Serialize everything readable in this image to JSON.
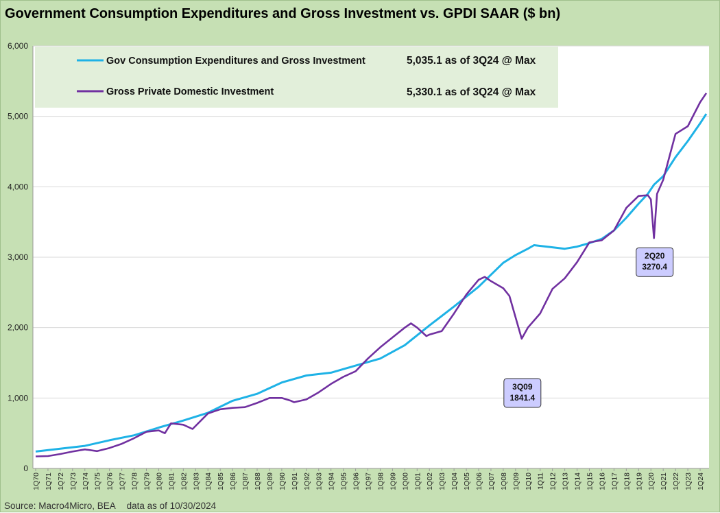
{
  "title": "Government Consumption Expenditures and Gross Investment vs. GPDI SAAR ($ bn)",
  "source": "Source: Macro4Micro, BEA",
  "data_as_of": "data as of 10/30/2024",
  "colors": {
    "gov": "#1eb2e6",
    "gpdi": "#7030a0",
    "frame": "#c6e0b4",
    "legend_box": "#e2efda",
    "callout_fill": "#ccccff"
  },
  "chart_data": {
    "type": "line",
    "title": "Government Consumption Expenditures and Gross Investment vs. GPDI SAAR ($ bn)",
    "ylim": [
      0,
      6000
    ],
    "yticks": [
      0,
      1000,
      2000,
      3000,
      4000,
      5000,
      6000
    ],
    "ytick_labels": [
      "0",
      "1,000",
      "2,000",
      "3,000",
      "4,000",
      "5,000",
      "6,000"
    ],
    "grid": "horizontal",
    "xlim": [
      "1Q70",
      "3Q24"
    ],
    "xtick_labels": [
      "1Q70",
      "1Q71",
      "1Q72",
      "1Q73",
      "1Q74",
      "1Q75",
      "1Q76",
      "1Q77",
      "1Q78",
      "1Q79",
      "1Q80",
      "1Q81",
      "1Q82",
      "1Q83",
      "1Q84",
      "1Q85",
      "1Q86",
      "1Q87",
      "1Q88",
      "1Q89",
      "1Q90",
      "1Q91",
      "1Q92",
      "1Q93",
      "1Q94",
      "1Q95",
      "1Q96",
      "1Q97",
      "1Q98",
      "1Q99",
      "1Q00",
      "1Q01",
      "1Q02",
      "1Q03",
      "1Q04",
      "1Q05",
      "1Q06",
      "1Q07",
      "1Q08",
      "1Q09",
      "1Q10",
      "1Q11",
      "1Q12",
      "1Q13",
      "1Q14",
      "1Q15",
      "1Q16",
      "1Q17",
      "1Q18",
      "1Q19",
      "1Q20",
      "1Q21",
      "1Q22",
      "1Q23",
      "1Q24"
    ],
    "legend_position": "top-left",
    "series": [
      {
        "name": "Gov Consumption Expenditures and Gross Investment",
        "note": "5,035.1 as of 3Q24 @ Max",
        "color": "#1eb2e6",
        "points": [
          [
            "1Q70",
            240
          ],
          [
            "1Q72",
            280
          ],
          [
            "1Q74",
            320
          ],
          [
            "1Q76",
            400
          ],
          [
            "1Q78",
            470
          ],
          [
            "1Q80",
            580
          ],
          [
            "1Q82",
            680
          ],
          [
            "1Q84",
            790
          ],
          [
            "1Q86",
            960
          ],
          [
            "1Q88",
            1060
          ],
          [
            "1Q90",
            1220
          ],
          [
            "1Q92",
            1320
          ],
          [
            "1Q94",
            1360
          ],
          [
            "1Q96",
            1460
          ],
          [
            "1Q98",
            1560
          ],
          [
            "1Q00",
            1750
          ],
          [
            "1Q02",
            2030
          ],
          [
            "1Q04",
            2300
          ],
          [
            "1Q06",
            2580
          ],
          [
            "1Q08",
            2920
          ],
          [
            "1Q09",
            3030
          ],
          [
            "1Q10",
            3120
          ],
          [
            "3Q10",
            3170
          ],
          [
            "1Q12",
            3140
          ],
          [
            "1Q13",
            3120
          ],
          [
            "1Q14",
            3150
          ],
          [
            "1Q15",
            3200
          ],
          [
            "1Q16",
            3260
          ],
          [
            "1Q17",
            3380
          ],
          [
            "1Q18",
            3560
          ],
          [
            "1Q19",
            3760
          ],
          [
            "4Q19",
            3900
          ],
          [
            "2Q20",
            4030
          ],
          [
            "1Q21",
            4150
          ],
          [
            "1Q22",
            4420
          ],
          [
            "1Q23",
            4650
          ],
          [
            "1Q24",
            4900
          ],
          [
            "3Q24",
            5035.1
          ]
        ]
      },
      {
        "name": "Gross Private Domestic Investment",
        "note": "5,330.1 as of 3Q24 @ Max",
        "color": "#7030a0",
        "points": [
          [
            "1Q70",
            170
          ],
          [
            "1Q71",
            175
          ],
          [
            "1Q72",
            205
          ],
          [
            "1Q73",
            240
          ],
          [
            "1Q74",
            270
          ],
          [
            "1Q75",
            245
          ],
          [
            "1Q76",
            290
          ],
          [
            "1Q77",
            350
          ],
          [
            "1Q78",
            430
          ],
          [
            "1Q79",
            520
          ],
          [
            "1Q80",
            540
          ],
          [
            "3Q80",
            500
          ],
          [
            "1Q81",
            640
          ],
          [
            "1Q82",
            620
          ],
          [
            "4Q82",
            560
          ],
          [
            "1Q84",
            780
          ],
          [
            "1Q85",
            840
          ],
          [
            "1Q86",
            860
          ],
          [
            "1Q87",
            870
          ],
          [
            "1Q88",
            930
          ],
          [
            "1Q89",
            1000
          ],
          [
            "1Q90",
            1000
          ],
          [
            "4Q90",
            960
          ],
          [
            "1Q91",
            940
          ],
          [
            "1Q92",
            980
          ],
          [
            "1Q93",
            1080
          ],
          [
            "1Q94",
            1200
          ],
          [
            "1Q95",
            1300
          ],
          [
            "1Q96",
            1380
          ],
          [
            "1Q97",
            1560
          ],
          [
            "1Q98",
            1720
          ],
          [
            "1Q99",
            1860
          ],
          [
            "1Q00",
            2000
          ],
          [
            "3Q00",
            2060
          ],
          [
            "1Q01",
            2000
          ],
          [
            "4Q01",
            1880
          ],
          [
            "1Q02",
            1900
          ],
          [
            "1Q03",
            1950
          ],
          [
            "1Q04",
            2200
          ],
          [
            "1Q05",
            2470
          ],
          [
            "1Q06",
            2680
          ],
          [
            "3Q06",
            2720
          ],
          [
            "1Q07",
            2660
          ],
          [
            "1Q08",
            2560
          ],
          [
            "3Q08",
            2450
          ],
          [
            "3Q09",
            1841.4
          ],
          [
            "1Q10",
            2000
          ],
          [
            "1Q11",
            2200
          ],
          [
            "1Q12",
            2550
          ],
          [
            "1Q13",
            2700
          ],
          [
            "1Q14",
            2930
          ],
          [
            "1Q15",
            3210
          ],
          [
            "1Q16",
            3240
          ],
          [
            "1Q17",
            3380
          ],
          [
            "1Q18",
            3700
          ],
          [
            "1Q19",
            3870
          ],
          [
            "4Q19",
            3880
          ],
          [
            "1Q20",
            3820
          ],
          [
            "2Q20",
            3270.4
          ],
          [
            "3Q20",
            3900
          ],
          [
            "1Q21",
            4100
          ],
          [
            "1Q22",
            4750
          ],
          [
            "1Q23",
            4860
          ],
          [
            "1Q24",
            5200
          ],
          [
            "3Q24",
            5330.1
          ]
        ]
      }
    ],
    "annotations": [
      {
        "label": "3Q09",
        "value_label": "1841.4",
        "x": "3Q09",
        "y": 1841.4
      },
      {
        "label": "2Q20",
        "value_label": "3270.4",
        "x": "2Q20",
        "y": 3270.4
      }
    ]
  }
}
